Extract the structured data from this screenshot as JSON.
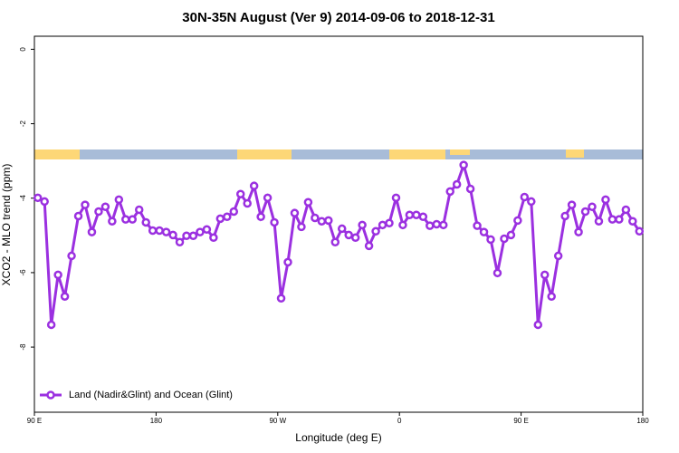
{
  "chart_data": {
    "type": "line",
    "title": "30N-35N August (Ver 9)   2014-09-06 to 2018-12-31",
    "x_label": "Longitude (deg E)",
    "y_label": "XCO2 - MLO trend (ppm)",
    "x": [
      92.5,
      97.5,
      102.5,
      107.5,
      112.5,
      117.5,
      122.5,
      127.5,
      132.5,
      137.5,
      142.5,
      147.5,
      152.5,
      157.5,
      162.5,
      167.5,
      172.5,
      177.5,
      182.5,
      187.5,
      192.5,
      197.5,
      202.5,
      207.5,
      212.5,
      217.5,
      222.5,
      227.5,
      232.5,
      237.5,
      242.5,
      247.5,
      252.5,
      257.5,
      262.5,
      267.5,
      272.5,
      277.5,
      282.5,
      287.5,
      292.5,
      297.5,
      302.5,
      307.5,
      312.5,
      317.5,
      322.5,
      327.5,
      332.5,
      337.5,
      342.5,
      347.5,
      352.5,
      357.5,
      362.5,
      367.5,
      372.5,
      377.5,
      382.5,
      387.5,
      392.5,
      397.5,
      402.5,
      407.5,
      412.5,
      417.5,
      422.5,
      427.5,
      432.5,
      437.5,
      442.5,
      447.5,
      452.5,
      457.5,
      462.5,
      467.5,
      472.5,
      477.5,
      482.5,
      487.5,
      492.5,
      497.5,
      502.5,
      507.5,
      512.5,
      517.5,
      522.5,
      527.5,
      532.5,
      537.5
    ],
    "series": [
      {
        "name": "Land (Nadir&Glint) and Ocean (Glint)",
        "color": "#9b30e0",
        "values": [
          -3.99,
          -4.09,
          -7.4,
          -6.06,
          -6.64,
          -5.55,
          -4.48,
          -4.18,
          -4.91,
          -4.36,
          -4.23,
          -4.62,
          -4.04,
          -4.57,
          -4.57,
          -4.31,
          -4.65,
          -4.87,
          -4.87,
          -4.91,
          -4.99,
          -5.18,
          -5.01,
          -5.01,
          -4.91,
          -4.84,
          -5.06,
          -4.55,
          -4.5,
          -4.36,
          -3.89,
          -4.14,
          -3.67,
          -4.5,
          -3.99,
          -4.65,
          -6.69,
          -5.72,
          -4.4,
          -4.77,
          -4.11,
          -4.53,
          -4.62,
          -4.6,
          -5.18,
          -4.82,
          -4.99,
          -5.06,
          -4.72,
          -5.28,
          -4.89,
          -4.72,
          -4.67,
          -3.99,
          -4.72,
          -4.45,
          -4.45,
          -4.5,
          -4.74,
          -4.7,
          -4.72,
          -3.82,
          -3.63,
          -3.11,
          -3.75,
          -4.74,
          -4.91,
          -5.11,
          -6.01,
          -5.09,
          -4.99,
          -4.6,
          -3.97,
          -4.09,
          -7.4,
          -6.06,
          -6.64,
          -5.55,
          -4.48,
          -4.18,
          -4.91,
          -4.36,
          -4.23,
          -4.62,
          -4.04,
          -4.57,
          -4.57,
          -4.31,
          -4.62,
          -4.89
        ]
      }
    ],
    "xlim": [
      90,
      540
    ],
    "xticks": [
      {
        "value": 90,
        "label": "90 E"
      },
      180,
      {
        "value": 270,
        "label": "90 W"
      },
      {
        "value": 360,
        "label": "0"
      },
      {
        "value": 450,
        "label": "90 E"
      },
      {
        "value": 540,
        "label": "180"
      }
    ],
    "ylim": [
      -9.75,
      0.35
    ],
    "yticks": [
      0,
      -2,
      -4,
      -6,
      -8
    ],
    "legend": "bottom-left"
  }
}
